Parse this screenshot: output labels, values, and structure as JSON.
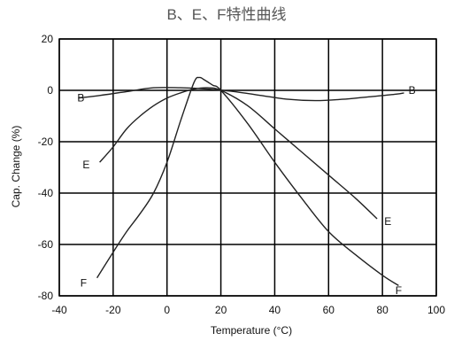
{
  "chart_data": {
    "type": "line",
    "title": "B、E、F特性曲线",
    "xlabel": "Temperature (°C)",
    "ylabel": "Cap. Change (%)",
    "xlim": [
      -40,
      100
    ],
    "ylim": [
      -80,
      20
    ],
    "x_ticks": [
      -40,
      -20,
      0,
      20,
      40,
      60,
      80,
      100
    ],
    "x_tick_labels": [
      "-40",
      "-20",
      "0",
      "20",
      "40",
      "60",
      "80",
      "100"
    ],
    "y_ticks": [
      20,
      0,
      -20,
      -40,
      -60,
      -80
    ],
    "y_tick_labels": [
      "20",
      "0",
      "-20",
      "-40",
      "-60",
      "-80"
    ],
    "grid": true,
    "colors": {
      "curve": "#222222",
      "grid": "#000000",
      "frame": "#000000"
    },
    "series": [
      {
        "name": "B",
        "label_points": [
          {
            "x": -32,
            "y": -3
          },
          {
            "x": 91,
            "y": 0
          }
        ],
        "x": [
          -33,
          -25,
          -15,
          -5,
          5,
          15,
          25,
          35,
          45,
          55,
          65,
          75,
          85,
          88
        ],
        "y": [
          -3,
          -2,
          -0.5,
          1,
          1,
          0.5,
          -0.5,
          -2,
          -3.5,
          -4,
          -3.5,
          -2.5,
          -1.5,
          -1
        ]
      },
      {
        "name": "E",
        "label_points": [
          {
            "x": -30,
            "y": -29
          },
          {
            "x": 82,
            "y": -51
          }
        ],
        "x": [
          -25,
          -20,
          -15,
          -10,
          -5,
          0,
          5,
          10,
          15,
          20,
          30,
          40,
          50,
          60,
          70,
          78
        ],
        "y": [
          -28,
          -22,
          -15,
          -10,
          -6,
          -3,
          -1,
          0.5,
          1,
          0,
          -6,
          -15,
          -24,
          -33,
          -42,
          -50
        ]
      },
      {
        "name": "F",
        "label_points": [
          {
            "x": -31,
            "y": -75
          },
          {
            "x": 86,
            "y": -78
          }
        ],
        "x": [
          -26,
          -20,
          -15,
          -10,
          -5,
          0,
          5,
          10,
          12,
          14,
          17,
          20,
          30,
          40,
          50,
          60,
          70,
          80,
          86
        ],
        "y": [
          -73,
          -63,
          -55,
          -48,
          -40,
          -28,
          -12,
          3,
          5,
          4,
          2,
          0,
          -13,
          -28,
          -42,
          -55,
          -64,
          -72,
          -76
        ]
      }
    ]
  }
}
